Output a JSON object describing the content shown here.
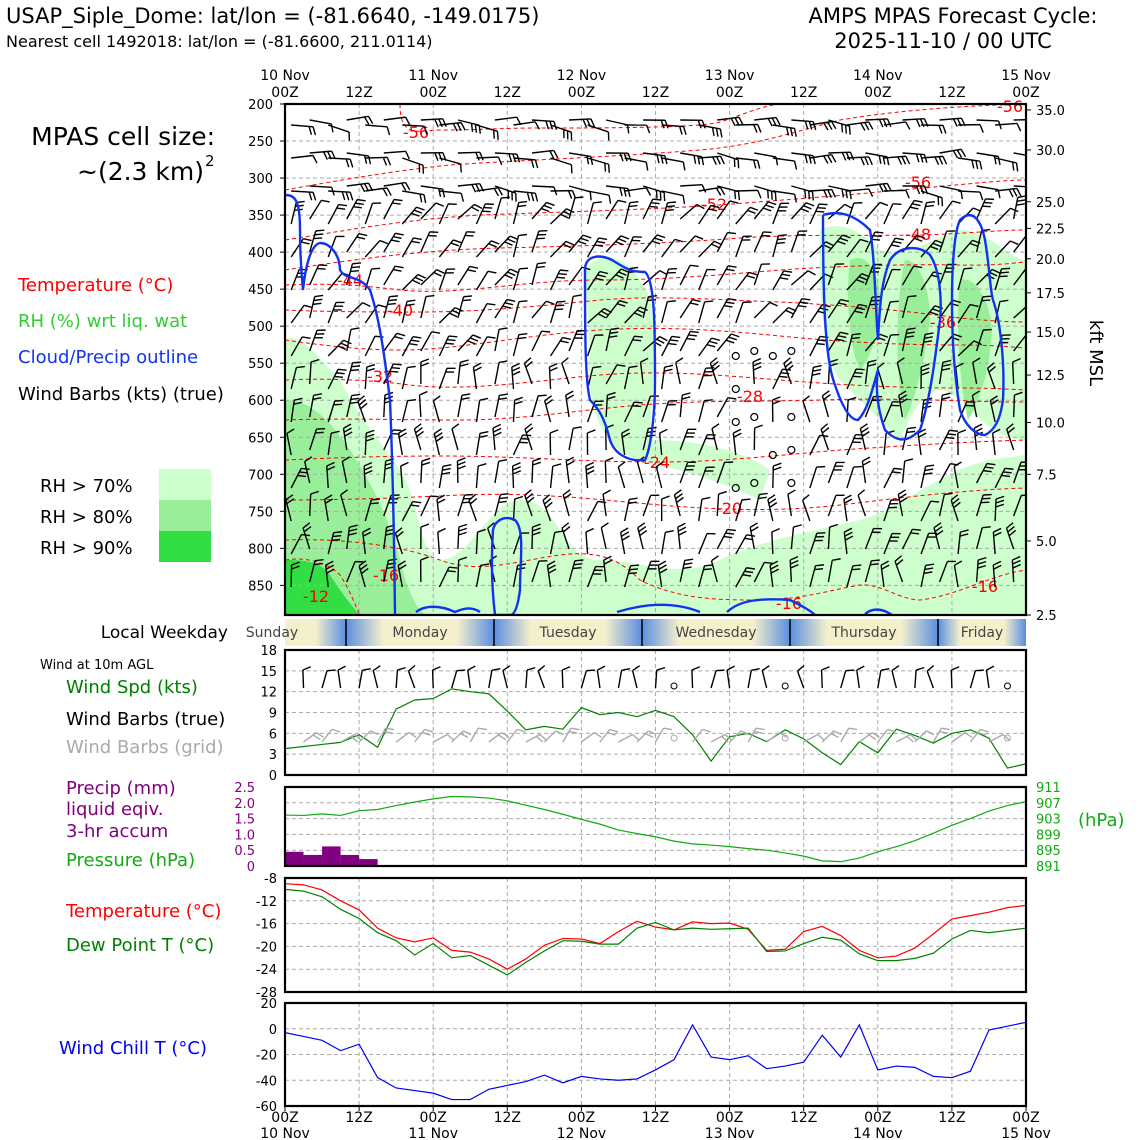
{
  "header": {
    "station_line": "USAP_Siple_Dome: lat/lon = (-81.6640, -149.0175)",
    "cell_line": "Nearest cell 1492018: lat/lon = (-81.6600, 211.0114)",
    "cycle_title": "AMPS MPAS Forecast Cycle:",
    "cycle_time": "2025-11-10 / 00 UTC"
  },
  "time_axis": {
    "top_dates": [
      "10 Nov",
      "11 Nov",
      "12 Nov",
      "13 Nov",
      "14 Nov",
      "15 Nov"
    ],
    "hour_labels": [
      "00Z",
      "12Z",
      "00Z",
      "12Z",
      "00Z",
      "12Z",
      "00Z",
      "12Z",
      "00Z",
      "12Z",
      "00Z"
    ],
    "bottom_dates": [
      "10 Nov",
      "11 Nov",
      "12 Nov",
      "13 Nov",
      "14 Nov",
      "15 Nov"
    ]
  },
  "sidebar": {
    "cell_size_label": "MPAS cell size:",
    "cell_size_value": "~(2.3 km)",
    "cell_size_exp": "2",
    "temp_legend": "Temperature (°C)",
    "rh_legend": "RH (%) wrt liq. wat",
    "cloud_legend": "Cloud/Precip outline",
    "barb_legend": "Wind Barbs (kts) (true)",
    "rh70": "RH > 70%",
    "rh80": "RH > 80%",
    "rh90": "RH > 90%",
    "weekday_label": "Local Weekday",
    "wind10_label": "Wind at 10m AGL",
    "windspd_label": "Wind Spd (kts)",
    "barbs_true_label": "Wind Barbs (true)",
    "barbs_grid_label": "Wind Barbs (grid)",
    "precip_label_1": "Precip (mm)",
    "precip_label_2": "liquid eqiv.",
    "precip_label_3": "3-hr accum",
    "pressure_label": "Pressure (hPa)",
    "hpa_unit": "(hPa)",
    "temp_label": "Temperature (°C)",
    "dew_label": "Dew Point T (°C)",
    "chill_label": "Wind Chill T (°C)",
    "kft_label": "kft MSL"
  },
  "colors": {
    "temp": "#ff0000",
    "dew": "#008000",
    "rh": "#33dd33",
    "rh70": "#ccffcc",
    "rh80": "#99ee99",
    "rh90": "#33dd44",
    "cloud": "#1133ee",
    "precip": "#800080",
    "pressure": "#11aa11",
    "chill": "#0000ee",
    "barb_grid": "#aaaaaa"
  },
  "chart_data": [
    {
      "type": "heatmap",
      "panel": "cross-section",
      "y_label_left_ticks": [
        "200",
        "250",
        "300",
        "350",
        "400",
        "450",
        "500",
        "550",
        "600",
        "650",
        "700",
        "750",
        "800",
        "850"
      ],
      "y_left_values": [
        200,
        250,
        300,
        350,
        400,
        450,
        500,
        550,
        600,
        650,
        700,
        750,
        800,
        850
      ],
      "ylim_hpa": [
        890,
        200
      ],
      "y_right_values": [
        35.0,
        30.0,
        25.0,
        22.5,
        20.0,
        17.5,
        15.0,
        12.5,
        10.0,
        7.5,
        5.0,
        2.5
      ],
      "y_right_ticks": [
        "35.0",
        "30.0",
        "25.0",
        "22.5",
        "20.0",
        "17.5",
        "15.0",
        "12.5",
        "10.0",
        "7.5",
        "5.0",
        "2.5"
      ],
      "temperature_labels": [
        "-56",
        "-56",
        "-56",
        "-52",
        "-48",
        "-44",
        "-40",
        "-36",
        "-32",
        "-28",
        "-24",
        "-20",
        "-16",
        "-16",
        "-16",
        "-12"
      ],
      "grid": true
    },
    {
      "type": "line",
      "panel": "wind10m",
      "x_hours": [
        0,
        6,
        12,
        18,
        24,
        30,
        36,
        42,
        48,
        54,
        60,
        66,
        72,
        78,
        84,
        90,
        96,
        102,
        108,
        114,
        120
      ],
      "series": [
        {
          "name": "Wind Spd (kts)",
          "x": [
            0,
            6,
            9,
            12,
            15,
            18,
            21,
            24,
            27,
            30,
            33,
            36,
            39,
            42,
            45,
            48,
            51,
            54,
            57,
            60,
            63,
            66,
            69,
            72,
            75,
            78,
            81,
            84,
            87,
            90,
            93,
            96,
            99,
            102,
            105,
            108,
            111,
            114,
            117,
            120
          ],
          "values": [
            3.8,
            4.4,
            4.7,
            5.8,
            4.0,
            9.5,
            10.8,
            11.0,
            12.4,
            12.0,
            11.7,
            9.2,
            6.5,
            7.0,
            6.6,
            9.7,
            8.7,
            9.0,
            8.4,
            9.3,
            8.4,
            5.8,
            2.0,
            5.5,
            6.0,
            4.8,
            6.5,
            5.2,
            3.2,
            1.5,
            4.8,
            3.2,
            6.6,
            5.7,
            4.6,
            6.0,
            6.5,
            5.3,
            1.0,
            1.6
          ]
        }
      ],
      "yticks": [
        "0",
        "3",
        "6",
        "9",
        "12",
        "15",
        "18"
      ],
      "ylim": [
        0,
        18
      ]
    },
    {
      "type": "line",
      "panel": "precip-pressure",
      "series": [
        {
          "name": "Pressure (hPa)",
          "x": [
            0,
            3,
            6,
            9,
            12,
            15,
            18,
            21,
            24,
            27,
            30,
            33,
            36,
            39,
            42,
            45,
            48,
            51,
            54,
            57,
            60,
            63,
            66,
            69,
            72,
            75,
            78,
            81,
            84,
            87,
            90,
            93,
            96,
            99,
            102,
            105,
            108,
            111,
            114,
            117,
            120
          ],
          "values": [
            903.9,
            903.8,
            904.2,
            903.8,
            905.0,
            905.3,
            906.3,
            907.2,
            908.0,
            908.6,
            908.5,
            908.2,
            907.5,
            906.4,
            905.3,
            904.1,
            902.8,
            901.6,
            900.1,
            899.2,
            898.4,
            897.3,
            896.6,
            896.3,
            895.9,
            895.4,
            895.0,
            894.3,
            893.5,
            892.3,
            892.1,
            893.0,
            894.6,
            895.9,
            897.4,
            899.3,
            901.3,
            903.0,
            904.9,
            906.3,
            907.3
          ]
        },
        {
          "name": "Precip (mm)",
          "type": "bar",
          "x": [
            0,
            3,
            6,
            9,
            12,
            15,
            18,
            21,
            24,
            27,
            30,
            33,
            36
          ],
          "values": [
            0.45,
            0.35,
            0.62,
            0.35,
            0.22,
            0,
            0,
            0,
            0,
            0,
            0,
            0,
            0
          ]
        }
      ],
      "precip_ticks": [
        "0",
        "0.5",
        "1.0",
        "1.5",
        "2.0",
        "2.5"
      ],
      "precip_lim": [
        0,
        2.5
      ],
      "pressure_ticks": [
        "891",
        "895",
        "899",
        "903",
        "907",
        "911"
      ],
      "pressure_lim": [
        891,
        911
      ]
    },
    {
      "type": "line",
      "panel": "temperature",
      "series": [
        {
          "name": "Temperature (°C)",
          "x": [
            0,
            3,
            6,
            9,
            12,
            15,
            18,
            21,
            24,
            27,
            30,
            33,
            36,
            39,
            42,
            45,
            48,
            51,
            54,
            57,
            60,
            63,
            66,
            69,
            72,
            75,
            78,
            81,
            84,
            87,
            90,
            93,
            96,
            99,
            102,
            105,
            108,
            111,
            114,
            117,
            120
          ],
          "values": [
            -9.0,
            -9.2,
            -10.1,
            -12.0,
            -13.6,
            -16.8,
            -18.5,
            -19.2,
            -18.5,
            -20.7,
            -21.0,
            -22.2,
            -24.0,
            -22.2,
            -19.8,
            -18.6,
            -18.7,
            -19.5,
            -17.4,
            -15.6,
            -16.6,
            -17.1,
            -15.7,
            -16.0,
            -15.9,
            -17.0,
            -20.7,
            -20.5,
            -17.4,
            -16.5,
            -18.1,
            -20.7,
            -22.0,
            -21.7,
            -20.3,
            -17.8,
            -15.2,
            -14.6,
            -14.0,
            -13.2,
            -12.8
          ]
        },
        {
          "name": "Dew Point T (°C)",
          "x": [
            0,
            3,
            6,
            9,
            12,
            15,
            18,
            21,
            24,
            27,
            30,
            33,
            36,
            39,
            42,
            45,
            48,
            51,
            54,
            57,
            60,
            63,
            66,
            69,
            72,
            75,
            78,
            81,
            84,
            87,
            90,
            93,
            96,
            99,
            102,
            105,
            108,
            111,
            114,
            117,
            120
          ],
          "values": [
            -10.0,
            -10.3,
            -11.3,
            -13.5,
            -15.1,
            -17.6,
            -19.0,
            -21.5,
            -19.5,
            -22.0,
            -21.6,
            -23.3,
            -25.0,
            -22.8,
            -20.8,
            -19.0,
            -19.1,
            -19.6,
            -19.6,
            -16.8,
            -15.8,
            -17.1,
            -16.8,
            -17.0,
            -16.9,
            -16.8,
            -20.9,
            -20.8,
            -19.5,
            -18.4,
            -18.9,
            -21.3,
            -22.5,
            -22.5,
            -22.1,
            -21.2,
            -18.7,
            -17.2,
            -17.6,
            -17.2,
            -16.8
          ]
        }
      ],
      "yticks": [
        "-8",
        "-12",
        "-16",
        "-20",
        "-24",
        "-28"
      ],
      "ylim": [
        -28,
        -8
      ]
    },
    {
      "type": "line",
      "panel": "windchill",
      "series": [
        {
          "name": "Wind Chill T (°C)",
          "x": [
            0,
            3,
            6,
            9,
            12,
            15,
            18,
            21,
            24,
            27,
            30,
            33,
            36,
            39,
            42,
            45,
            48,
            51,
            54,
            57,
            60,
            63,
            66,
            69,
            72,
            75,
            78,
            81,
            84,
            87,
            90,
            93,
            96,
            99,
            102,
            105,
            108,
            111,
            114,
            117,
            120
          ],
          "values": [
            -3,
            -6,
            -9,
            -17,
            -12,
            -38,
            -46,
            -48,
            -50,
            -55,
            -55,
            -47,
            -44,
            -41,
            -36,
            -42,
            -37,
            -39,
            -40,
            -39,
            -32,
            -24,
            3,
            -22,
            -24,
            -21,
            -31,
            -29,
            -26,
            -5,
            -22,
            3,
            -32,
            -29,
            -30,
            -37,
            -38,
            -33,
            -1,
            2,
            5
          ]
        }
      ],
      "yticks": [
        "20",
        "0",
        "-20",
        "-40",
        "-60"
      ],
      "ylim": [
        -60,
        20
      ]
    }
  ]
}
